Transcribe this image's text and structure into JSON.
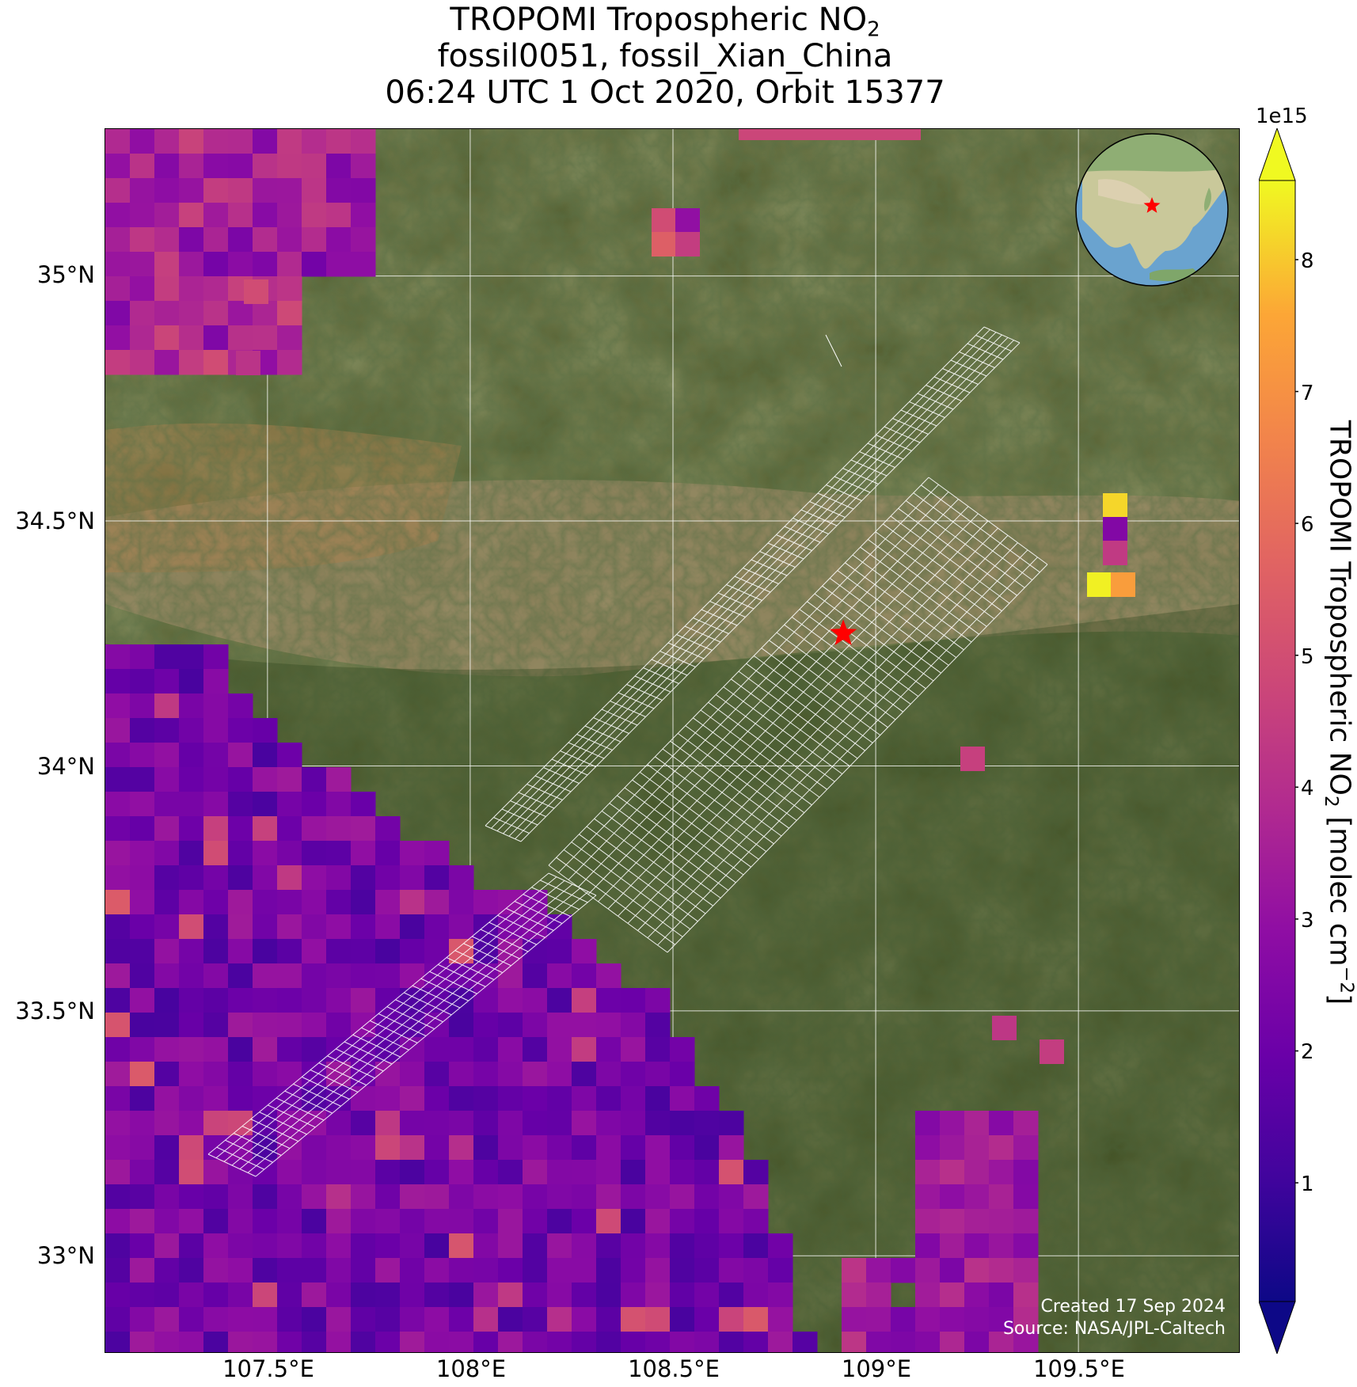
{
  "title": {
    "line1_prefix": "TROPOMI Tropospheric NO",
    "line1_sub": "2",
    "line2": "fossil0051, fossil_Xian_China",
    "line3": "06:24 UTC 1 Oct 2020, Orbit 15377"
  },
  "axes": {
    "y_ticks": [
      "35°N",
      "34.5°N",
      "34°N",
      "33.5°N",
      "33°N"
    ],
    "x_ticks": [
      "107.5°E",
      "108°E",
      "108.5°E",
      "109°E",
      "109.5°E"
    ],
    "lon_range": [
      107.1,
      109.9
    ],
    "lat_range": [
      32.8,
      35.3
    ]
  },
  "colorbar": {
    "multiplier": "1e15",
    "ticks": [
      "1",
      "2",
      "3",
      "4",
      "5",
      "6",
      "7",
      "8"
    ],
    "label_prefix": "TROPOMI Tropospheric NO",
    "label_sub": "2",
    "label_mid": " [molec cm",
    "label_sup": "−2",
    "label_suffix": "]",
    "colormap": "plasma",
    "range": [
      0.1,
      8.6
    ],
    "extend": "both"
  },
  "credits": {
    "created": "Created 17 Sep 2024",
    "source": "Source: NASA/JPL-Caltech"
  },
  "target_marker": {
    "lon": 108.92,
    "lat": 34.27,
    "color": "#ff0000",
    "symbol": "star"
  },
  "colors": {
    "grid": "#ffffff",
    "outline": "#ffffff",
    "marker": "#ff0000"
  }
}
